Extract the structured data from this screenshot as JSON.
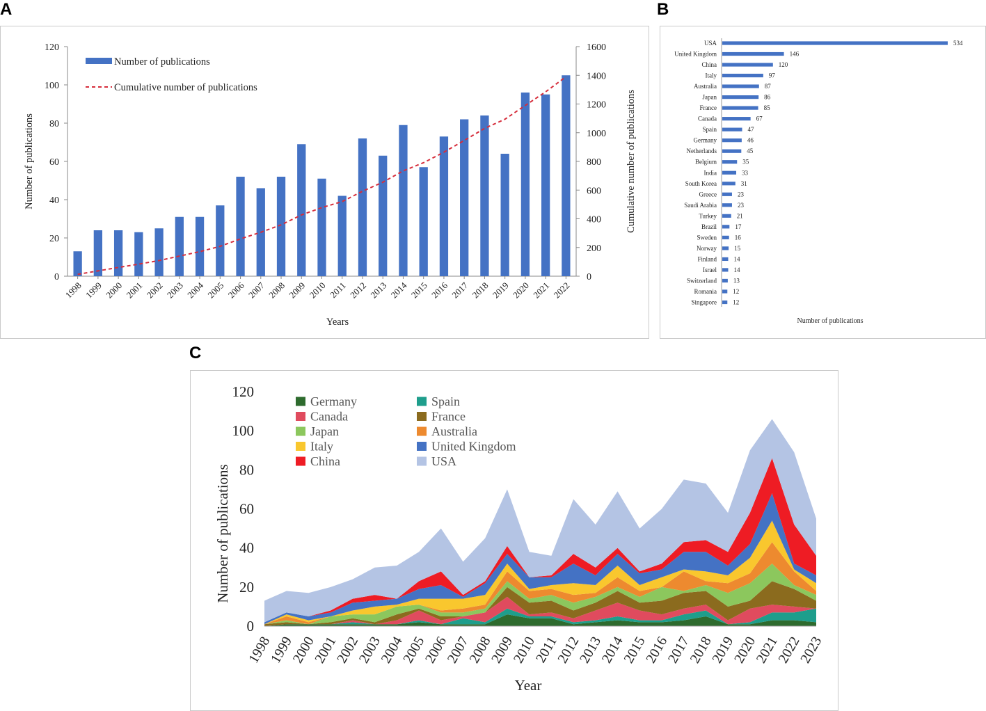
{
  "panel_labels": {
    "a": "A",
    "b": "B",
    "c": "C"
  },
  "chart_data": [
    {
      "type": "bar",
      "title": "",
      "categories": [
        "1998",
        "1999",
        "2000",
        "2001",
        "2002",
        "2003",
        "2004",
        "2005",
        "2006",
        "2007",
        "2008",
        "2009",
        "2010",
        "2011",
        "2012",
        "2013",
        "2014",
        "2015",
        "2016",
        "2017",
        "2018",
        "2019",
        "2020",
        "2021",
        "2022"
      ],
      "series": [
        {
          "name": "Number of publications",
          "type": "bar",
          "axis": "left",
          "color": "#4472C4",
          "values": [
            13,
            24,
            24,
            23,
            25,
            31,
            31,
            37,
            52,
            46,
            52,
            69,
            51,
            42,
            72,
            63,
            79,
            57,
            73,
            82,
            84,
            64,
            96,
            95,
            105
          ]
        },
        {
          "name": "Cumulative number of publications",
          "type": "line",
          "axis": "right",
          "color": "#D62D3B",
          "values": [
            13,
            37,
            61,
            84,
            109,
            140,
            171,
            208,
            260,
            306,
            358,
            427,
            478,
            520,
            592,
            655,
            734,
            791,
            864,
            946,
            1030,
            1094,
            1190,
            1285,
            1390
          ]
        }
      ],
      "xlabel": "Years",
      "ylabel": "Number of publications",
      "y2label": "Cumulative number of publications",
      "ylim": [
        0,
        120
      ],
      "y2lim": [
        0,
        1600
      ],
      "yticks": [
        "0",
        "20",
        "40",
        "60",
        "80",
        "100",
        "120"
      ],
      "y2ticks": [
        "0",
        "200",
        "400",
        "600",
        "800",
        "1000",
        "1200",
        "1400",
        "1600"
      ],
      "legend": [
        "Number of publications",
        "Cumulative number of publications"
      ]
    },
    {
      "type": "bar",
      "orientation": "horizontal",
      "title": "",
      "categories": [
        "USA",
        "United Kingdom",
        "China",
        "Italy",
        "Australia",
        "Japan",
        "France",
        "Canada",
        "Spain",
        "Germany",
        "Netherlands",
        "Belgium",
        "India",
        "South Korea",
        "Greece",
        "Saudi Arabia",
        "Turkey",
        "Brazil",
        "Sweden",
        "Norway",
        "Finland",
        "Israel",
        "Switzerland",
        "Romania",
        "Singapore"
      ],
      "values": [
        534,
        146,
        120,
        97,
        87,
        86,
        85,
        67,
        47,
        46,
        45,
        35,
        33,
        31,
        23,
        23,
        21,
        17,
        16,
        15,
        14,
        14,
        13,
        12,
        12
      ],
      "labels": [
        "534",
        "146",
        "120",
        "97",
        "87",
        "86",
        "85",
        "67",
        "47",
        "46",
        "45",
        "35",
        "33",
        "31",
        "23",
        "23",
        "21",
        "17",
        "16",
        "15",
        "14",
        "14",
        "13",
        "12",
        "12"
      ],
      "xlabel": "Number of publications",
      "color": "#4472C4",
      "xlim": [
        0,
        600
      ]
    },
    {
      "type": "area",
      "stacked": true,
      "title": "",
      "x": [
        "1998",
        "1999",
        "2000",
        "2001",
        "2002",
        "2003",
        "2004",
        "2005",
        "2006",
        "2007",
        "2008",
        "2009",
        "2010",
        "2011",
        "2012",
        "2013",
        "2014",
        "2015",
        "2016",
        "2017",
        "2018",
        "2019",
        "2020",
        "2021",
        "2022",
        "2023"
      ],
      "series": [
        {
          "name": "Germany",
          "color": "#2E6B2E",
          "values": [
            0,
            1,
            1,
            1,
            1,
            1,
            1,
            2,
            1,
            1,
            1,
            6,
            4,
            4,
            1,
            2,
            3,
            2,
            2,
            3,
            5,
            1,
            1,
            3,
            3,
            2
          ]
        },
        {
          "name": "Spain",
          "color": "#1E9E8C",
          "values": [
            0,
            0,
            0,
            0,
            1,
            0,
            0,
            1,
            0,
            3,
            1,
            3,
            1,
            1,
            1,
            1,
            2,
            1,
            1,
            3,
            3,
            0,
            1,
            4,
            4,
            7
          ]
        },
        {
          "name": "Canada",
          "color": "#E04B5E",
          "values": [
            0,
            0,
            0,
            0,
            1,
            0,
            2,
            5,
            2,
            1,
            5,
            6,
            1,
            2,
            2,
            5,
            7,
            5,
            3,
            3,
            3,
            2,
            7,
            4,
            3,
            0
          ]
        },
        {
          "name": "France",
          "color": "#8B6B1E",
          "values": [
            1,
            1,
            0,
            1,
            1,
            1,
            3,
            1,
            2,
            0,
            0,
            5,
            6,
            6,
            4,
            4,
            6,
            4,
            7,
            8,
            7,
            7,
            4,
            12,
            9,
            4
          ]
        },
        {
          "name": "Japan",
          "color": "#8CC75D",
          "values": [
            0,
            1,
            0,
            3,
            2,
            4,
            4,
            2,
            2,
            2,
            2,
            3,
            2,
            3,
            4,
            3,
            2,
            3,
            7,
            1,
            3,
            7,
            9,
            9,
            2,
            3
          ]
        },
        {
          "name": "Australia",
          "color": "#ED8A2F",
          "values": [
            0,
            2,
            1,
            0,
            0,
            0,
            0,
            0,
            1,
            2,
            2,
            5,
            4,
            3,
            4,
            2,
            5,
            3,
            0,
            10,
            2,
            5,
            5,
            11,
            7,
            2
          ]
        },
        {
          "name": "Italy",
          "color": "#F9C72E",
          "values": [
            0,
            1,
            1,
            0,
            2,
            4,
            1,
            3,
            6,
            5,
            5,
            4,
            1,
            2,
            6,
            4,
            6,
            3,
            5,
            1,
            5,
            4,
            8,
            11,
            1,
            4
          ]
        },
        {
          "name": "United Kingdom",
          "color": "#4472C4",
          "values": [
            1,
            1,
            2,
            2,
            4,
            3,
            3,
            5,
            7,
            1,
            6,
            5,
            6,
            4,
            10,
            5,
            6,
            6,
            4,
            9,
            10,
            5,
            7,
            14,
            3,
            4
          ]
        },
        {
          "name": "China",
          "color": "#EE1C24",
          "values": [
            0,
            0,
            0,
            1,
            2,
            3,
            0,
            4,
            7,
            1,
            1,
            4,
            0,
            1,
            5,
            4,
            3,
            1,
            3,
            5,
            6,
            7,
            16,
            18,
            20,
            10
          ]
        },
        {
          "name": "USA",
          "color": "#B4C4E4",
          "values": [
            11,
            11,
            12,
            12,
            10,
            14,
            17,
            15,
            22,
            17,
            22,
            29,
            13,
            10,
            28,
            22,
            29,
            22,
            28,
            32,
            29,
            20,
            32,
            20,
            37,
            19
          ]
        }
      ],
      "xlabel": "Year",
      "ylabel": "Number of publications",
      "ylim": [
        0,
        120
      ],
      "yticks": [
        "0",
        "20",
        "40",
        "60",
        "80",
        "100",
        "120"
      ],
      "legend": [
        "Germany",
        "Spain",
        "Canada",
        "France",
        "Japan",
        "Australia",
        "Italy",
        "United Kingdom",
        "China",
        "USA"
      ]
    }
  ]
}
